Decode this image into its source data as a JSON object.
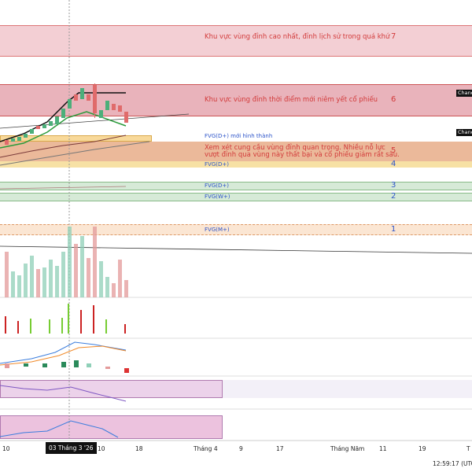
{
  "zones": [
    {
      "label": "Khu vực vùng đỉnh cao nhất, đỉnh lịch sử trong quá khứ",
      "number": "7"
    },
    {
      "label": "Khu vực vùng đỉnh thời điểm mới niêm yết cổ phiếu",
      "number": "6"
    },
    {
      "label_lines": [
        "Xem xét cung cầu vùng đỉnh quan trọng. Nhiều nỗ lực",
        "vượt đỉnh qua vùng này thất bại và cổ phiếu giảm rất sâu."
      ],
      "number": "5"
    },
    {
      "label": "FVG(D+)",
      "number": "4"
    },
    {
      "label": "FVG(D+)",
      "number": "3"
    },
    {
      "label": "FVG(W+)",
      "number": "2"
    },
    {
      "label": "FVG(M+)",
      "number": "1"
    }
  ],
  "fvg_new": "FVG(D+) mới hình thành",
  "chance_tags": [
    "Chanc",
    "Chanc"
  ],
  "x_axis": [
    "10",
    "03 Tháng 3 '26",
    "10",
    "18",
    "Tháng 4",
    "9",
    "17",
    "Tháng Năm",
    "11",
    "19",
    "T"
  ],
  "clock": "12:59:17 (UTC"
}
